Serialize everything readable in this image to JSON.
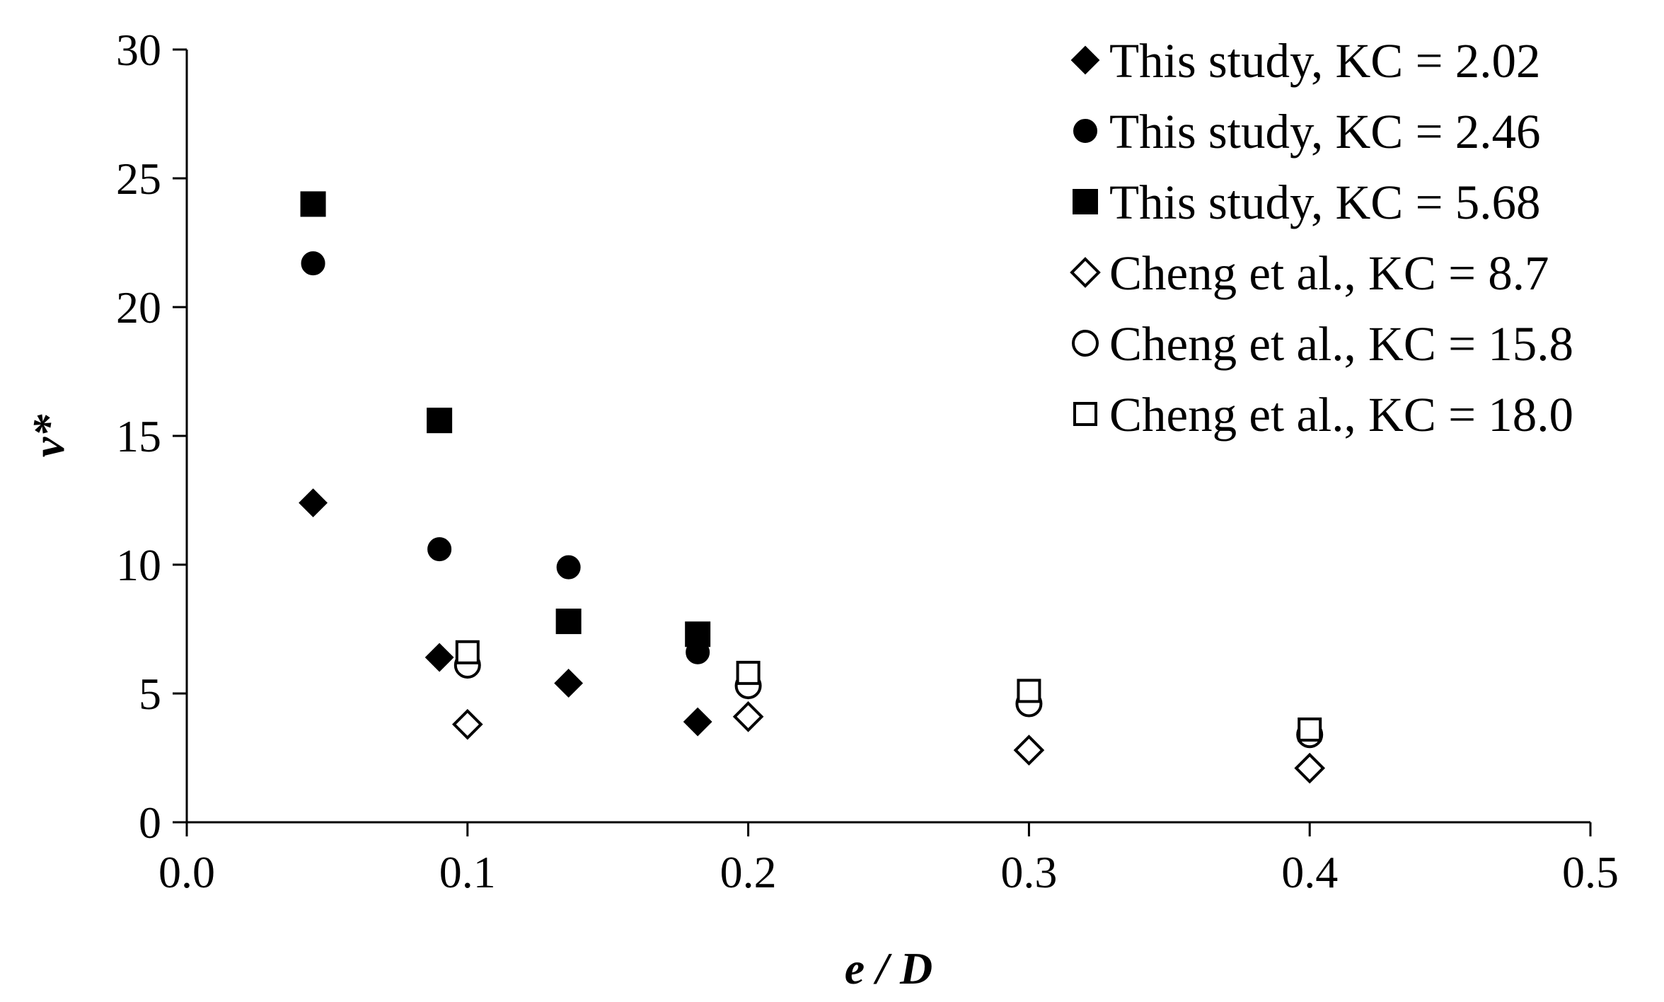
{
  "chart_data": {
    "type": "scatter",
    "title": "",
    "xlabel": "e / D",
    "ylabel": "v*",
    "xlim": [
      0.0,
      0.5
    ],
    "ylim": [
      0,
      30
    ],
    "x_ticks": [
      "0.0",
      "0.1",
      "0.2",
      "0.3",
      "0.4",
      "0.5"
    ],
    "y_ticks": [
      "0",
      "5",
      "10",
      "15",
      "20",
      "25",
      "30"
    ],
    "grid": false,
    "legend_position": "top-right",
    "series": [
      {
        "name": "This study, KC = 2.02",
        "marker": "diamond",
        "filled": true,
        "color": "#000000",
        "points": [
          [
            0.045,
            12.4
          ],
          [
            0.09,
            6.4
          ],
          [
            0.136,
            5.4
          ],
          [
            0.182,
            3.9
          ]
        ]
      },
      {
        "name": "This study, KC = 2.46",
        "marker": "circle",
        "filled": true,
        "color": "#000000",
        "points": [
          [
            0.045,
            21.7
          ],
          [
            0.09,
            10.6
          ],
          [
            0.136,
            9.9
          ],
          [
            0.182,
            6.6
          ]
        ]
      },
      {
        "name": "This study, KC = 5.68",
        "marker": "square",
        "filled": true,
        "color": "#000000",
        "points": [
          [
            0.045,
            24.0
          ],
          [
            0.09,
            15.6
          ],
          [
            0.136,
            7.8
          ],
          [
            0.182,
            7.3
          ]
        ]
      },
      {
        "name": "Cheng et al., KC = 8.7",
        "marker": "diamond",
        "filled": false,
        "color": "#000000",
        "points": [
          [
            0.1,
            3.8
          ],
          [
            0.2,
            4.1
          ],
          [
            0.3,
            2.8
          ],
          [
            0.4,
            2.1
          ]
        ]
      },
      {
        "name": "Cheng et al., KC = 15.8",
        "marker": "circle",
        "filled": false,
        "color": "#000000",
        "points": [
          [
            0.1,
            6.1
          ],
          [
            0.2,
            5.3
          ],
          [
            0.3,
            4.6
          ],
          [
            0.4,
            3.4
          ]
        ]
      },
      {
        "name": "Cheng et al., KC = 18.0",
        "marker": "square",
        "filled": false,
        "color": "#000000",
        "points": [
          [
            0.1,
            6.6
          ],
          [
            0.2,
            5.8
          ],
          [
            0.3,
            5.1
          ],
          [
            0.4,
            3.6
          ]
        ]
      }
    ]
  }
}
